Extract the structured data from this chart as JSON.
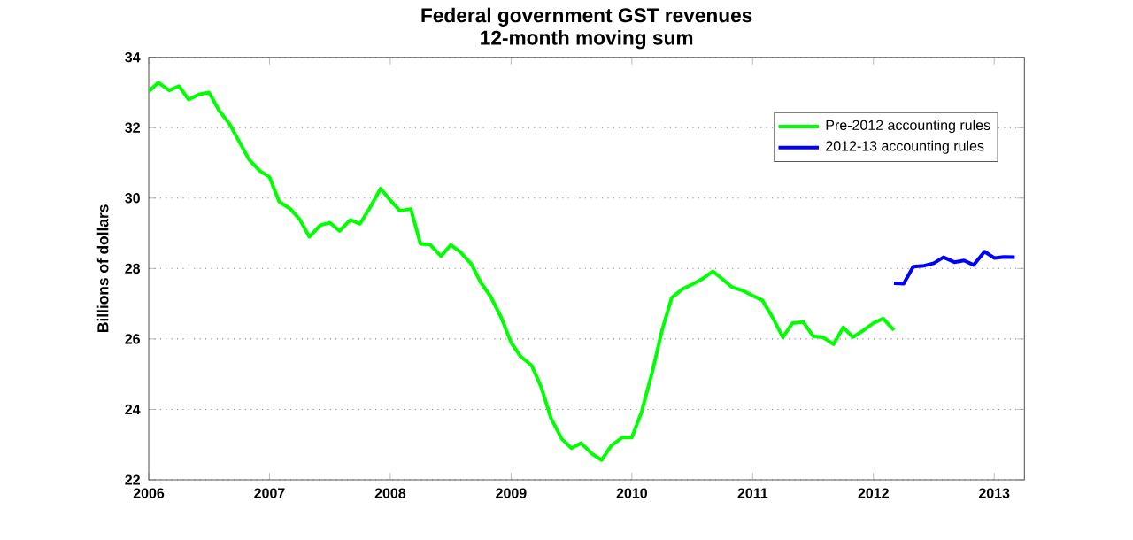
{
  "chart_data": {
    "type": "line",
    "title": "Federal government GST revenues",
    "subtitle": "12-month moving sum",
    "ylabel": "Billions of dollars",
    "xlim": [
      2006,
      2013.25
    ],
    "ylim": [
      22,
      34
    ],
    "xticks": [
      2006,
      2007,
      2008,
      2009,
      2010,
      2011,
      2012,
      2013
    ],
    "yticks": [
      22,
      24,
      26,
      28,
      30,
      32,
      34
    ],
    "grid": "y",
    "legend": "top right",
    "marker": "none",
    "line_style": "solid",
    "series": [
      {
        "name": "Pre-2012 accounting rules",
        "color": "#00ff00",
        "x": [
          2006.0,
          2006.08,
          2006.17,
          2006.25,
          2006.33,
          2006.42,
          2006.5,
          2006.58,
          2006.67,
          2006.75,
          2006.83,
          2006.92,
          2007.0,
          2007.08,
          2007.17,
          2007.25,
          2007.33,
          2007.42,
          2007.5,
          2007.58,
          2007.67,
          2007.75,
          2007.83,
          2007.92,
          2008.0,
          2008.08,
          2008.17,
          2008.25,
          2008.33,
          2008.42,
          2008.5,
          2008.58,
          2008.67,
          2008.75,
          2008.83,
          2008.92,
          2009.0,
          2009.08,
          2009.17,
          2009.25,
          2009.33,
          2009.42,
          2009.5,
          2009.58,
          2009.67,
          2009.75,
          2009.83,
          2009.92,
          2010.0,
          2010.08,
          2010.17,
          2010.25,
          2010.33,
          2010.42,
          2010.5,
          2010.58,
          2010.67,
          2010.75,
          2010.83,
          2010.92,
          2011.0,
          2011.08,
          2011.17,
          2011.25,
          2011.33,
          2011.42,
          2011.5,
          2011.58,
          2011.67,
          2011.75,
          2011.83,
          2011.92,
          2012.0,
          2012.08,
          2012.17
        ],
        "values": [
          33.03,
          33.28,
          33.06,
          33.18,
          32.8,
          32.95,
          33.0,
          32.5,
          32.1,
          31.6,
          31.1,
          30.77,
          30.6,
          29.9,
          29.7,
          29.4,
          28.9,
          29.23,
          29.3,
          29.07,
          29.38,
          29.27,
          29.72,
          30.27,
          29.94,
          29.64,
          29.69,
          28.7,
          28.68,
          28.35,
          28.67,
          28.47,
          28.13,
          27.6,
          27.21,
          26.6,
          25.9,
          25.5,
          25.25,
          24.63,
          23.75,
          23.16,
          22.9,
          23.04,
          22.74,
          22.56,
          22.97,
          23.2,
          23.2,
          23.92,
          25.08,
          26.25,
          27.17,
          27.42,
          27.55,
          27.7,
          27.92,
          27.7,
          27.47,
          27.37,
          27.23,
          27.1,
          26.58,
          26.05,
          26.45,
          26.48,
          26.08,
          26.05,
          25.85,
          26.33,
          26.05,
          26.25,
          26.45,
          26.58,
          26.25
        ]
      },
      {
        "name": "2012-13 accounting rules",
        "color": "#0000ff",
        "x": [
          2012.17,
          2012.25,
          2012.33,
          2012.42,
          2012.5,
          2012.58,
          2012.67,
          2012.75,
          2012.83,
          2012.92,
          2013.0,
          2013.08,
          2013.17
        ],
        "values": [
          27.58,
          27.57,
          28.05,
          28.08,
          28.15,
          28.32,
          28.18,
          28.23,
          28.1,
          28.48,
          28.3,
          28.33,
          28.32
        ]
      }
    ]
  }
}
